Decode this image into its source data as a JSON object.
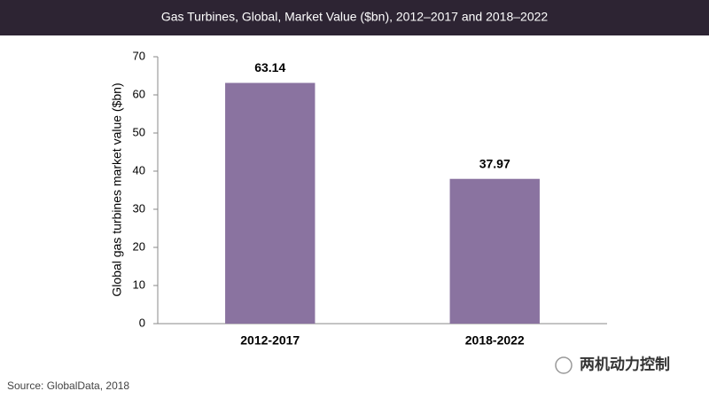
{
  "chart_data": {
    "type": "bar",
    "title": "Gas Turbines, Global, Market Value ($bn),  2012–2017 and 2018–2022",
    "y_axis_label": "Global gas turbines market value ($bn)",
    "categories": [
      "2012-2017",
      "2018-2022"
    ],
    "values": [
      63.14,
      37.97
    ],
    "color": "#8a73a0",
    "ylim": [
      0,
      70
    ],
    "yticks": [
      0,
      10,
      20,
      30,
      40,
      50,
      60,
      70
    ],
    "source": "Source: GlobalData, 2018",
    "watermark": "两机动力控制"
  }
}
